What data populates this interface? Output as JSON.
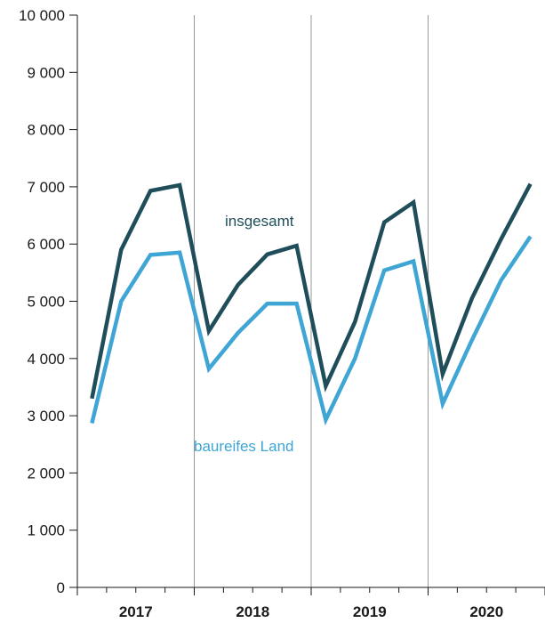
{
  "chart_data": {
    "type": "line",
    "x": [
      "2017 Q1",
      "2017 Q2",
      "2017 Q3",
      "2017 Q4",
      "2018 Q1",
      "2018 Q2",
      "2018 Q3",
      "2018 Q4",
      "2019 Q1",
      "2019 Q2",
      "2019 Q3",
      "2019 Q4",
      "2020 Q1",
      "2020 Q2",
      "2020 Q3",
      "2020 Q4"
    ],
    "years": [
      "2017",
      "2018",
      "2019",
      "2020"
    ],
    "ylim": [
      0,
      10000
    ],
    "yticks": [
      {
        "value": 0,
        "label": "0"
      },
      {
        "value": 1000,
        "label": "1 000"
      },
      {
        "value": 2000,
        "label": "2 000"
      },
      {
        "value": 3000,
        "label": "3 000"
      },
      {
        "value": 4000,
        "label": "4 000"
      },
      {
        "value": 5000,
        "label": "5 000"
      },
      {
        "value": 6000,
        "label": "6 000"
      },
      {
        "value": 7000,
        "label": "7 000"
      },
      {
        "value": 8000,
        "label": "8 000"
      },
      {
        "value": 9000,
        "label": "9 000"
      },
      {
        "value": 10000,
        "label": "10 000"
      }
    ],
    "series": [
      {
        "name": "insgesamt",
        "color": "#1f4e5a",
        "values": [
          3300,
          5900,
          6930,
          7030,
          4480,
          5290,
          5820,
          5970,
          3520,
          4640,
          6380,
          6730,
          3730,
          5050,
          6090,
          7050
        ]
      },
      {
        "name": "baureifes Land",
        "color": "#3ea5d4",
        "values": [
          2870,
          5000,
          5810,
          5850,
          3820,
          4450,
          4960,
          4960,
          2930,
          4000,
          5540,
          5700,
          3210,
          4320,
          5370,
          6130
        ]
      }
    ],
    "grid": true,
    "gridlines": "vertical-between-years"
  }
}
